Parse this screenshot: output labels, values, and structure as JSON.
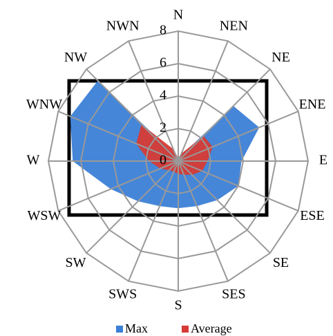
{
  "chart_data": {
    "type": "radar",
    "categories": [
      "N",
      "NEN",
      "NE",
      "ENE",
      "E",
      "ESE",
      "SE",
      "SES",
      "S",
      "SWS",
      "SW",
      "WSW",
      "W",
      "WNW",
      "NW",
      "NWN"
    ],
    "series": [
      {
        "name": "Max",
        "color": "#3b7fd6",
        "values": [
          0,
          0.3,
          4.8,
          5.4,
          3.9,
          4,
          3.4,
          3,
          2.9,
          3,
          3.5,
          4.5,
          6.5,
          7.2,
          7,
          0.3
        ]
      },
      {
        "name": "Average",
        "color": "#d63b35",
        "values": [
          0.2,
          0.5,
          2.2,
          2.3,
          1.8,
          1.6,
          1.2,
          0.9,
          0.8,
          0.7,
          0.8,
          1.2,
          1.8,
          2.8,
          3.2,
          0.8
        ]
      }
    ],
    "ylim": [
      0,
      8
    ],
    "yticks": [
      0,
      2,
      4,
      6,
      8
    ],
    "grid": true,
    "legend": "bottom"
  }
}
